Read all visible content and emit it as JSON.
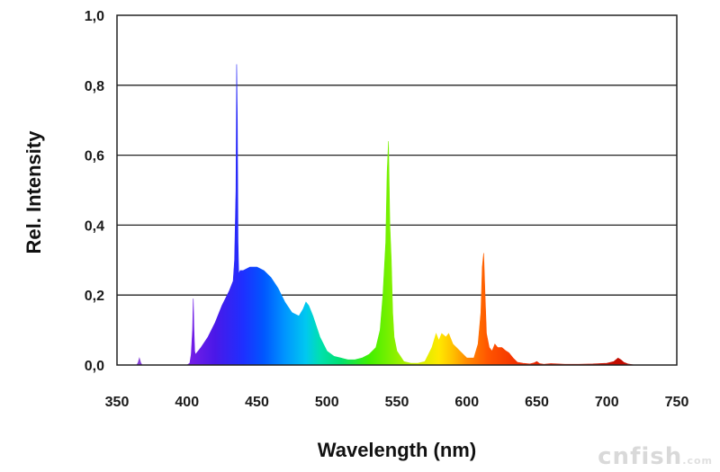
{
  "chart_data": {
    "type": "area",
    "xlabel": "Wavelength (nm)",
    "ylabel": "Rel. Intensity",
    "xlim": [
      350,
      750
    ],
    "ylim": [
      0,
      1.0
    ],
    "x_ticks": [
      "350",
      "400",
      "450",
      "500",
      "550",
      "600",
      "650",
      "700",
      "750"
    ],
    "y_ticks": [
      "0,0",
      "0,2",
      "0,4",
      "0,6",
      "0,8",
      "1,0"
    ],
    "grid": true,
    "series": [
      {
        "x": [
          364,
          365,
          366,
          367,
          368,
          400,
          402,
          403,
          404,
          404.5,
          405,
          405.5,
          406,
          407,
          410,
          415,
          420,
          425,
          430,
          433,
          434,
          435,
          435.5,
          436,
          436.5,
          437,
          438,
          440,
          445,
          450,
          455,
          460,
          465,
          470,
          475,
          480,
          483,
          485,
          487,
          490,
          495,
          500,
          505,
          510,
          515,
          520,
          525,
          530,
          535,
          538,
          540,
          542,
          543,
          544,
          545,
          546,
          547,
          548,
          550,
          555,
          560,
          565,
          570,
          575,
          578,
          580,
          582,
          585,
          587,
          590,
          595,
          600,
          605,
          608,
          610,
          611,
          612,
          613,
          614,
          616,
          618,
          620,
          622,
          625,
          628,
          630,
          633,
          636,
          640,
          645,
          648,
          650,
          652,
          655,
          660,
          665,
          670,
          680,
          690,
          700,
          705,
          708,
          710,
          712,
          715,
          720
        ],
        "y": [
          0,
          0.006,
          0.02,
          0.006,
          0,
          0,
          0.005,
          0.03,
          0.1,
          0.19,
          0.1,
          0.04,
          0.03,
          0.035,
          0.05,
          0.08,
          0.12,
          0.17,
          0.21,
          0.24,
          0.3,
          0.5,
          0.86,
          0.7,
          0.35,
          0.26,
          0.27,
          0.27,
          0.28,
          0.28,
          0.27,
          0.25,
          0.22,
          0.18,
          0.15,
          0.14,
          0.16,
          0.18,
          0.17,
          0.14,
          0.08,
          0.04,
          0.025,
          0.02,
          0.015,
          0.015,
          0.02,
          0.03,
          0.05,
          0.1,
          0.2,
          0.35,
          0.55,
          0.64,
          0.4,
          0.3,
          0.15,
          0.08,
          0.04,
          0.01,
          0.005,
          0.005,
          0.01,
          0.05,
          0.09,
          0.07,
          0.09,
          0.08,
          0.09,
          0.06,
          0.04,
          0.02,
          0.02,
          0.06,
          0.15,
          0.28,
          0.32,
          0.2,
          0.09,
          0.05,
          0.04,
          0.06,
          0.05,
          0.05,
          0.04,
          0.035,
          0.02,
          0.008,
          0.005,
          0.003,
          0.006,
          0.01,
          0.004,
          0.002,
          0.004,
          0.003,
          0.002,
          0.002,
          0.003,
          0.005,
          0.01,
          0.02,
          0.015,
          0.008,
          0.003,
          0
        ]
      }
    ]
  },
  "watermark": {
    "main": "cnfish",
    "suffix": ".com"
  }
}
